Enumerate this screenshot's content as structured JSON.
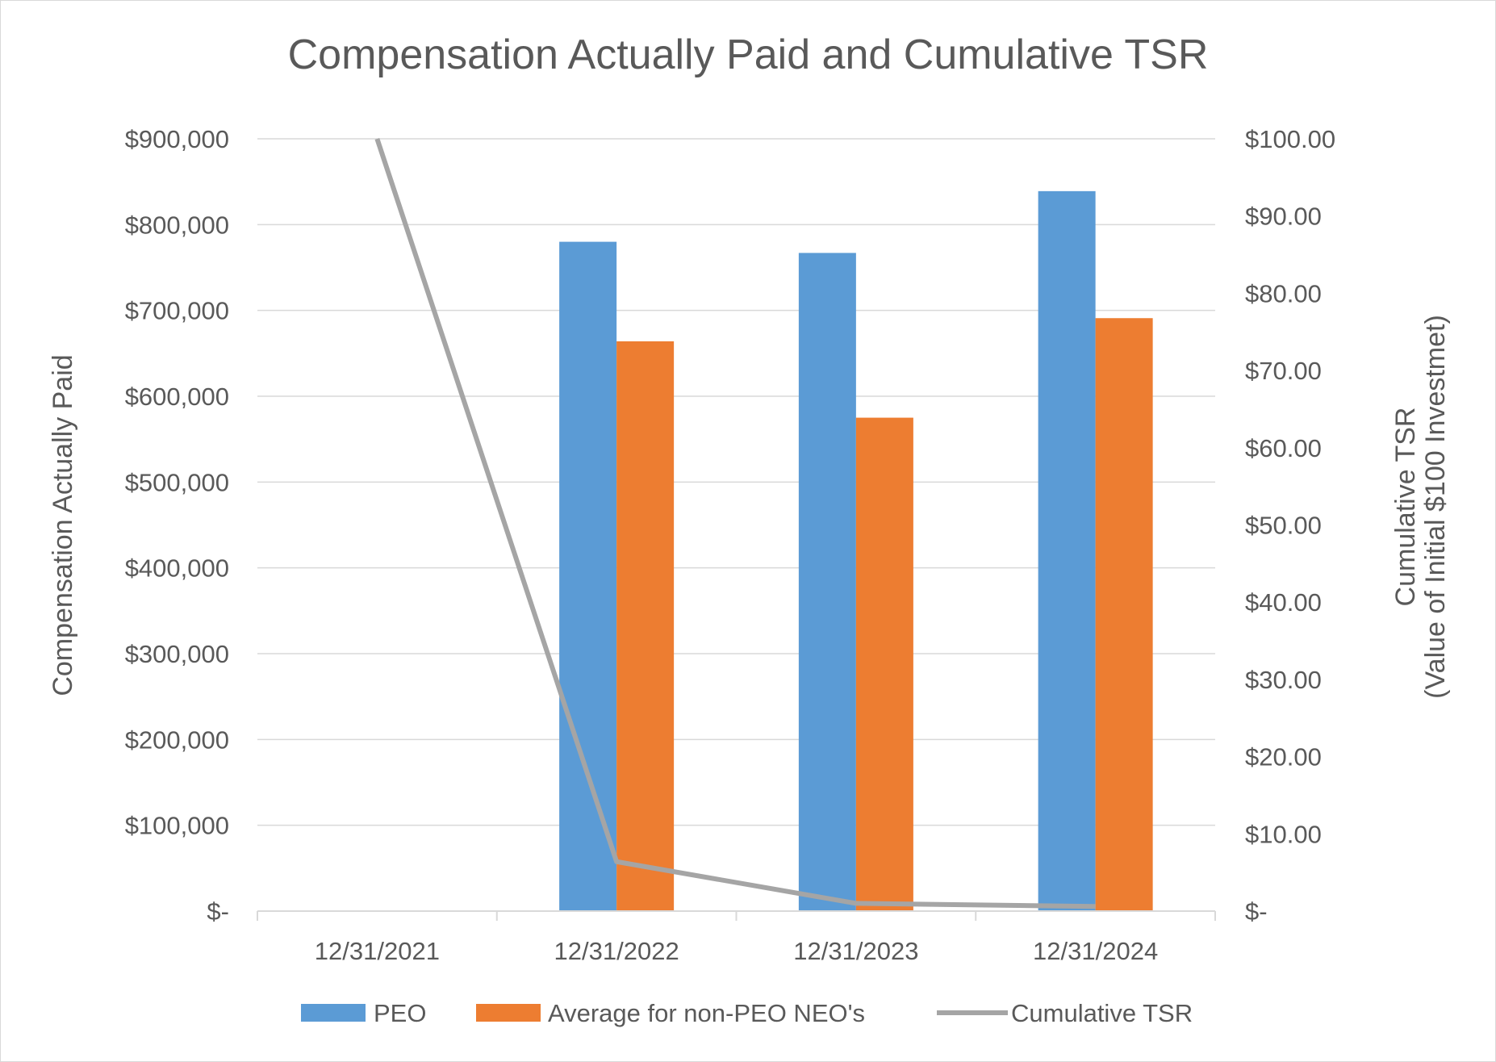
{
  "chart_data": {
    "type": "bar",
    "title": "Compensation Actually Paid and Cumulative TSR",
    "categories": [
      "12/31/2021",
      "12/31/2022",
      "12/31/2023",
      "12/31/2024"
    ],
    "series": [
      {
        "name": "PEO",
        "type": "bar",
        "axis": "left",
        "color": "#5b9bd5",
        "values": [
          null,
          780000,
          767000,
          839000
        ]
      },
      {
        "name": "Average for non-PEO NEO's",
        "type": "bar",
        "axis": "left",
        "color": "#ed7d31",
        "values": [
          null,
          664000,
          575000,
          691000
        ]
      },
      {
        "name": "Cumulative TSR",
        "type": "line",
        "axis": "right",
        "color": "#a5a5a5",
        "values": [
          100.0,
          6.4,
          1.0,
          0.6
        ]
      }
    ],
    "ylabel_left": "Compensation Actually Paid",
    "ylabel_right_line1": "Cumulative TSR",
    "ylabel_right_line2": "(Value of Initial $100 Investmet)",
    "ylim_left": [
      0,
      900000
    ],
    "ylim_right": [
      0,
      100
    ],
    "left_ticks": [
      "$-",
      "$100,000",
      "$200,000",
      "$300,000",
      "$400,000",
      "$500,000",
      "$600,000",
      "$700,000",
      "$800,000",
      "$900,000"
    ],
    "right_ticks": [
      "$-",
      "$10.00",
      "$20.00",
      "$30.00",
      "$40.00",
      "$50.00",
      "$60.00",
      "$70.00",
      "$80.00",
      "$90.00",
      "$100.00"
    ],
    "grid": true,
    "legend_position": "bottom"
  }
}
